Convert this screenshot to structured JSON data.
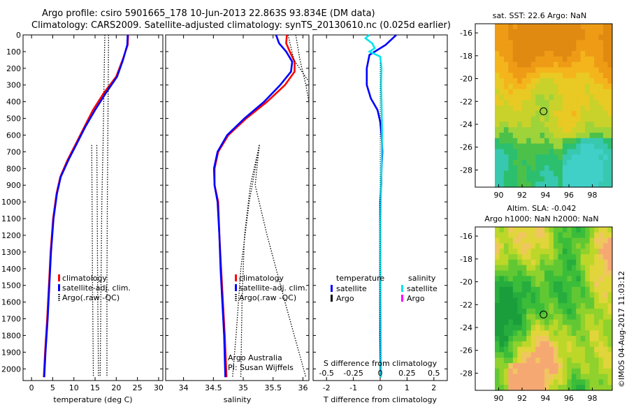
{
  "header": {
    "line1": "Argo profile: csiro 5901665_178 10-Jun-2013 22.863S 93.834E (DM data)",
    "line2": "Climatology: CARS2009. Satellite-adjusted climatology: synTS_20130610.nc (0.025d earlier)"
  },
  "colors": {
    "climatology": "#ff0000",
    "satellite": "#0000ff",
    "satellite_salinity": "#00e5ee",
    "argo": "#000000",
    "argo_salinity": "#ff00ff"
  },
  "credit": {
    "watermark": "©IMOS 04-Aug-2017 11:03:12"
  },
  "chart_data": [
    {
      "type": "line",
      "id": "temperature",
      "xlabel": "temperature (deg C)",
      "ylabel": "",
      "xlim": [
        -2,
        31
      ],
      "ylim": [
        2070,
        0
      ],
      "x_ticks": [
        0,
        5,
        10,
        15,
        20,
        25,
        30
      ],
      "y_ticks": [
        0,
        100,
        200,
        300,
        400,
        500,
        600,
        700,
        800,
        900,
        1000,
        1100,
        1200,
        1300,
        1400,
        1500,
        1600,
        1700,
        1800,
        1900,
        2000
      ],
      "legend": [
        "climatology",
        "satellite-adj. clim.",
        "Argo(.raw -QC)"
      ],
      "series": [
        {
          "name": "climatology",
          "style": "solid",
          "color": "#ff0000",
          "points": [
            [
              22.8,
              0
            ],
            [
              22.7,
              60
            ],
            [
              21.5,
              150
            ],
            [
              20,
              250
            ],
            [
              17,
              350
            ],
            [
              14.5,
              450
            ],
            [
              12.5,
              550
            ],
            [
              10.5,
              650
            ],
            [
              8.5,
              750
            ],
            [
              6.8,
              850
            ],
            [
              5.9,
              950
            ],
            [
              5.1,
              1100
            ],
            [
              4.5,
              1300
            ],
            [
              4.1,
              1500
            ],
            [
              3.7,
              1700
            ],
            [
              3.2,
              1900
            ],
            [
              2.9,
              2050
            ]
          ]
        },
        {
          "name": "satellite-adj. clim.",
          "style": "solid",
          "color": "#0000ff",
          "points": [
            [
              22.7,
              0
            ],
            [
              22.6,
              60
            ],
            [
              21.6,
              150
            ],
            [
              20.2,
              250
            ],
            [
              17.5,
              350
            ],
            [
              15,
              450
            ],
            [
              12.7,
              550
            ],
            [
              10.7,
              650
            ],
            [
              8.7,
              750
            ],
            [
              6.9,
              850
            ],
            [
              6,
              950
            ],
            [
              5.2,
              1100
            ],
            [
              4.6,
              1300
            ],
            [
              4.2,
              1500
            ],
            [
              3.8,
              1700
            ],
            [
              3.3,
              1900
            ],
            [
              3,
              2050
            ]
          ]
        },
        {
          "name": "Argo(.raw -QC)",
          "style": "dotted",
          "color": "#000000",
          "points": [
            [
              17.3,
              0
            ],
            [
              17.1,
              300
            ],
            [
              16.9,
              660
            ],
            [
              16.6,
              1000
            ],
            [
              16.4,
              1500
            ],
            [
              16.2,
              2050
            ]
          ]
        },
        {
          "name": "Argo(.raw -QC)",
          "style": "dotted",
          "color": "#000000",
          "points": [
            [
              18.2,
              0
            ],
            [
              18.1,
              300
            ],
            [
              18,
              660
            ],
            [
              17.9,
              1000
            ],
            [
              17.8,
              1500
            ],
            [
              17.8,
              2050
            ]
          ]
        },
        {
          "name": "Argo(.raw -QC)",
          "style": "dotted",
          "color": "#000000",
          "points": [
            [
              14.2,
              660
            ],
            [
              14.3,
              1000
            ],
            [
              14.4,
              1500
            ],
            [
              14.6,
              2050
            ]
          ]
        },
        {
          "name": "Argo(.raw -QC)",
          "style": "dotted",
          "color": "#000000",
          "points": [
            [
              15.4,
              660
            ],
            [
              15.5,
              1000
            ],
            [
              15.6,
              1500
            ],
            [
              15.8,
              2050
            ]
          ]
        }
      ]
    },
    {
      "type": "line",
      "id": "salinity",
      "xlabel": "salinity",
      "ylabel": "",
      "xlim": [
        33.7,
        36.1
      ],
      "ylim": [
        2070,
        0
      ],
      "x_ticks": [
        34,
        34.5,
        35,
        35.5,
        36
      ],
      "legend": [
        "climatology",
        "satellite-adj. clim.",
        "Argo(.raw -QC)"
      ],
      "annotation": [
        "Argo Australia",
        "PI: Susan Wijffels"
      ],
      "series": [
        {
          "name": "climatology",
          "style": "solid",
          "color": "#ff0000",
          "points": [
            [
              35.73,
              0
            ],
            [
              35.72,
              50
            ],
            [
              35.78,
              100
            ],
            [
              35.86,
              160
            ],
            [
              35.86,
              220
            ],
            [
              35.7,
              300
            ],
            [
              35.4,
              400
            ],
            [
              35.05,
              500
            ],
            [
              34.75,
              600
            ],
            [
              34.58,
              700
            ],
            [
              34.52,
              800
            ],
            [
              34.52,
              900
            ],
            [
              34.58,
              1000
            ],
            [
              34.6,
              1200
            ],
            [
              34.63,
              1400
            ],
            [
              34.66,
              1600
            ],
            [
              34.69,
              1800
            ],
            [
              34.72,
              2050
            ]
          ]
        },
        {
          "name": "satellite-adj. clim.",
          "style": "solid",
          "color": "#0000ff",
          "points": [
            [
              35.55,
              0
            ],
            [
              35.6,
              50
            ],
            [
              35.72,
              100
            ],
            [
              35.82,
              160
            ],
            [
              35.8,
              220
            ],
            [
              35.62,
              300
            ],
            [
              35.35,
              400
            ],
            [
              35.02,
              500
            ],
            [
              34.73,
              600
            ],
            [
              34.57,
              700
            ],
            [
              34.51,
              800
            ],
            [
              34.52,
              900
            ],
            [
              34.57,
              1000
            ],
            [
              34.6,
              1200
            ],
            [
              34.62,
              1400
            ],
            [
              34.65,
              1600
            ],
            [
              34.68,
              1800
            ],
            [
              34.7,
              2050
            ]
          ]
        },
        {
          "name": "Argo(.raw -QC)",
          "style": "dotted",
          "color": "#000000",
          "points": [
            [
              35.88,
              0
            ],
            [
              35.95,
              150
            ],
            [
              36.05,
              300
            ],
            [
              36.1,
              400
            ]
          ]
        },
        {
          "name": "Argo(.raw -QC)",
          "style": "dotted",
          "color": "#000000",
          "points": [
            [
              35.75,
              0
            ],
            [
              35.85,
              150
            ],
            [
              36.1,
              280
            ]
          ]
        },
        {
          "name": "Argo(.raw -QC)",
          "style": "dotted",
          "color": "#000000",
          "points": [
            [
              35.27,
              660
            ],
            [
              35.12,
              900
            ],
            [
              35.02,
              1200
            ],
            [
              34.98,
              1600
            ],
            [
              34.96,
              2050
            ]
          ]
        },
        {
          "name": "Argo(.raw -QC)",
          "style": "dotted",
          "color": "#000000",
          "points": [
            [
              35.27,
              660
            ],
            [
              35.2,
              900
            ],
            [
              35.4,
              1200
            ],
            [
              35.7,
              1600
            ],
            [
              36.05,
              2050
            ]
          ]
        },
        {
          "name": "Argo(.raw -QC)",
          "style": "dotted",
          "color": "#000000",
          "points": [
            [
              35.27,
              660
            ],
            [
              35.1,
              1000
            ],
            [
              34.96,
              1400
            ],
            [
              34.88,
              1800
            ],
            [
              34.82,
              2050
            ]
          ]
        }
      ]
    },
    {
      "type": "line",
      "id": "difference",
      "xlabel": "T difference from climatology",
      "xlabel_top": "S difference from climatology",
      "xlim": [
        -2.5,
        2.5
      ],
      "ylim": [
        2070,
        0
      ],
      "x_ticks": [
        -2,
        -1,
        0,
        1,
        2
      ],
      "x_ticks_top": [
        "-0.5",
        "-0.25",
        "0",
        "0.25",
        "0.5"
      ],
      "legend_left_title": "temperature",
      "legend_right_title": "salinity",
      "legend_left": [
        "satellite",
        "Argo"
      ],
      "legend_right": [
        "satellite",
        "Argo"
      ],
      "series": [
        {
          "name": "satellite",
          "variable": "temperature",
          "style": "solid",
          "color": "#0000ff",
          "points": [
            [
              0.6,
              0
            ],
            [
              0.4,
              30
            ],
            [
              0.2,
              60
            ],
            [
              -0.4,
              120
            ],
            [
              -0.5,
              200
            ],
            [
              -0.5,
              300
            ],
            [
              -0.35,
              380
            ],
            [
              -0.1,
              450
            ],
            [
              0,
              520
            ],
            [
              0.05,
              600
            ],
            [
              0.08,
              700
            ],
            [
              0.05,
              800
            ],
            [
              0.04,
              900
            ],
            [
              0,
              1000
            ],
            [
              0,
              1200
            ],
            [
              0,
              1500
            ],
            [
              0,
              1800
            ],
            [
              0.02,
              2050
            ]
          ]
        },
        {
          "name": "satellite",
          "variable": "salinity",
          "style": "solid",
          "color": "#00e5ee",
          "points": [
            [
              -0.4,
              0
            ],
            [
              -0.55,
              20
            ],
            [
              -0.3,
              50
            ],
            [
              -0.2,
              80
            ],
            [
              -0.4,
              100
            ],
            [
              0,
              130
            ],
            [
              0.05,
              200
            ],
            [
              0.03,
              300
            ],
            [
              0.05,
              400
            ],
            [
              0.06,
              500
            ],
            [
              0.07,
              600
            ],
            [
              0.06,
              700
            ],
            [
              0.05,
              800
            ],
            [
              0.03,
              900
            ],
            [
              0.02,
              1000
            ],
            [
              0,
              1200
            ],
            [
              0.01,
              1500
            ],
            [
              0.02,
              1800
            ],
            [
              0.03,
              2050
            ]
          ]
        }
      ]
    },
    {
      "type": "heatmap",
      "id": "sst_map",
      "title": "sat. SST: 22.6 Argo: NaN",
      "x_ticks": [
        90,
        92,
        94,
        96,
        98
      ],
      "y_ticks": [
        -16,
        -18,
        -20,
        -22,
        -24,
        -26,
        -28
      ],
      "xlim": [
        88,
        99.7
      ],
      "ylim": [
        -29.5,
        -15.2
      ],
      "marker": [
        93.834,
        -22.863
      ]
    },
    {
      "type": "heatmap",
      "id": "sla_map",
      "title": "Altim. SLA: -0.042",
      "subtitle": "Argo h1000: NaN h2000: NaN",
      "x_ticks": [
        90,
        92,
        94,
        96,
        98
      ],
      "y_ticks": [
        -16,
        -18,
        -20,
        -22,
        -24,
        -26,
        -28
      ],
      "xlim": [
        88,
        99.7
      ],
      "ylim": [
        -29.5,
        -15.2
      ],
      "marker": [
        93.834,
        -22.863
      ]
    }
  ]
}
